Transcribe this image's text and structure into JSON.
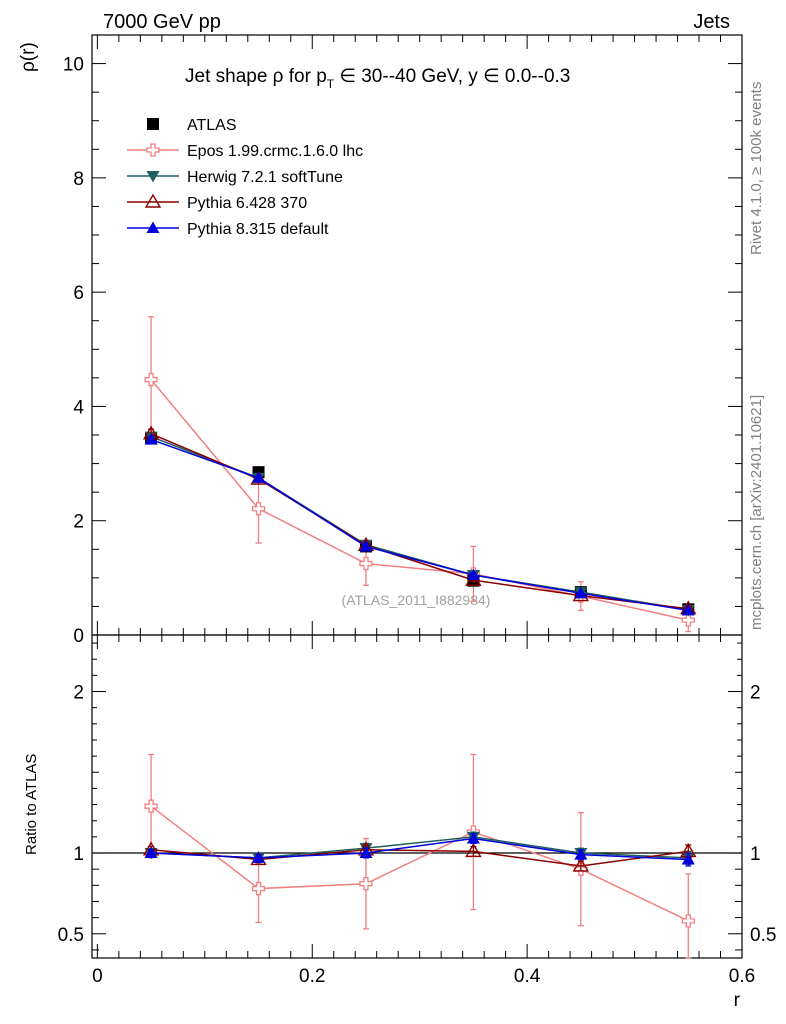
{
  "header": {
    "left_title": "7000 GeV pp",
    "right_title": "Jets"
  },
  "side_labels": {
    "rivet": "Rivet 4.1.0, ≥ 100k events",
    "mcplots": "mcplots.cern.ch [arXiv:2401.10621]"
  },
  "plot_title": {
    "prefix": "Jet shape ρ for p",
    "sub": "T",
    "suffix": " ∈ 30--40 GeV, y ∈ 0.0--0.3"
  },
  "watermark": "(ATLAS_2011_I882984)",
  "colors": {
    "ATLAS": "#000000",
    "Epos": "#f08080",
    "Herwig": "#1f5f5f",
    "Pythia6": "#8b0000",
    "Pythia8": "#0000dd"
  },
  "chart_data": [
    {
      "type": "line",
      "title": "Jet shape ρ for pT ∈ 30--40 GeV, y ∈ 0.0--0.3",
      "ylabel": "ρ(r)",
      "xlabel": "",
      "xlim": [
        -0.005,
        0.6
      ],
      "ylim": [
        0,
        10.5
      ],
      "x": [
        0.05,
        0.15,
        0.25,
        0.35,
        0.45,
        0.55
      ],
      "yticks": [
        0,
        2,
        4,
        6,
        8,
        10
      ],
      "ytick_labels": [
        "0",
        "2",
        "4",
        "6",
        "8",
        "10"
      ],
      "series": [
        {
          "name": "ATLAS",
          "key": "ATLAS",
          "marker": "square",
          "values": [
            3.45,
            2.85,
            1.55,
            0.95,
            0.75,
            0.45
          ],
          "err": [
            0,
            0,
            0,
            0,
            0,
            0
          ]
        },
        {
          "name": "Epos 1.99.crmc.1.6.0 lhc",
          "key": "Epos",
          "marker": "cross",
          "values": [
            4.47,
            2.21,
            1.25,
            1.07,
            0.68,
            0.26
          ],
          "err": [
            1.1,
            0.6,
            0.38,
            0.48,
            0.25,
            0.2
          ]
        },
        {
          "name": "Herwig 7.2.1 softTune",
          "key": "Herwig",
          "marker": "tri-down",
          "values": [
            3.47,
            2.75,
            1.58,
            1.05,
            0.75,
            0.44
          ],
          "err": [
            0.06,
            0.04,
            0.03,
            0.03,
            0.02,
            0.02
          ]
        },
        {
          "name": "Pythia 6.428 370",
          "key": "Pythia6",
          "marker": "tri-open",
          "values": [
            3.52,
            2.73,
            1.57,
            0.96,
            0.69,
            0.46
          ],
          "err": [
            0.08,
            0.05,
            0.04,
            0.03,
            0.02,
            0.02
          ]
        },
        {
          "name": "Pythia 8.315 default",
          "key": "Pythia8",
          "marker": "tri-up",
          "values": [
            3.42,
            2.75,
            1.55,
            1.05,
            0.73,
            0.43
          ],
          "err": [
            0.06,
            0.04,
            0.03,
            0.03,
            0.02,
            0.02
          ]
        }
      ]
    },
    {
      "type": "line",
      "title": "",
      "ylabel": "Ratio to ATLAS",
      "xlabel": "r",
      "xlim": [
        -0.005,
        0.6
      ],
      "ylim": [
        0.35,
        2.35
      ],
      "x": [
        0.05,
        0.15,
        0.25,
        0.35,
        0.45,
        0.55
      ],
      "xticks": [
        0,
        0.2,
        0.4,
        0.6
      ],
      "xtick_labels": [
        "0",
        "0.2",
        "0.4",
        "0.6"
      ],
      "yticks": [
        0.5,
        1,
        2
      ],
      "ytick_labels": [
        "0.5",
        "1",
        "2"
      ],
      "series": [
        {
          "name": "Epos 1.99.crmc.1.6.0 lhc",
          "key": "Epos",
          "marker": "cross",
          "values": [
            1.29,
            0.78,
            0.81,
            1.13,
            0.9,
            0.58
          ],
          "err": [
            0.32,
            0.21,
            0.28,
            0.48,
            0.35,
            0.29
          ]
        },
        {
          "name": "Herwig 7.2.1 softTune",
          "key": "Herwig",
          "marker": "tri-down",
          "values": [
            1.0,
            0.97,
            1.03,
            1.1,
            1.0,
            0.97
          ],
          "err": [
            0.02,
            0.02,
            0.03,
            0.03,
            0.03,
            0.04
          ]
        },
        {
          "name": "Pythia 6.428 370",
          "key": "Pythia6",
          "marker": "tri-open",
          "values": [
            1.02,
            0.96,
            1.02,
            1.01,
            0.92,
            1.01
          ],
          "err": [
            0.02,
            0.02,
            0.03,
            0.03,
            0.03,
            0.04
          ]
        },
        {
          "name": "Pythia 8.315 default",
          "key": "Pythia8",
          "marker": "tri-up",
          "values": [
            1.0,
            0.97,
            1.0,
            1.09,
            0.99,
            0.96
          ],
          "err": [
            0.02,
            0.02,
            0.03,
            0.03,
            0.03,
            0.04
          ]
        }
      ]
    }
  ]
}
